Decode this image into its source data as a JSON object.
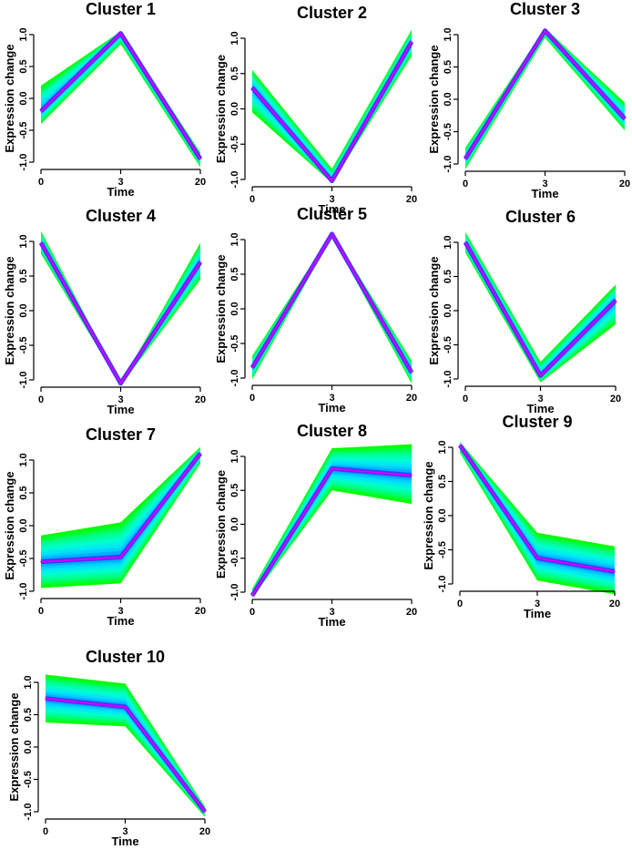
{
  "chart_data": [
    {
      "type": "line",
      "title": "Cluster 1",
      "xlabel": "Time",
      "ylabel": "Expression change",
      "x": [
        "0",
        "3",
        "20"
      ],
      "ylim": [
        -1,
        1
      ],
      "yticks": [
        "-1.0",
        "-0.5",
        "0.0",
        "0.5",
        "1.0"
      ],
      "series": [
        {
          "values": [
            -0.2,
            1.02,
            -0.95
          ]
        }
      ],
      "band": {
        "upper": [
          0.2,
          1.05,
          -0.85
        ],
        "lower": [
          -0.4,
          0.85,
          -1.08
        ]
      }
    },
    {
      "type": "line",
      "title": "Cluster 2",
      "xlabel": "Time",
      "ylabel": "Expression change",
      "x": [
        "0",
        "3",
        "20"
      ],
      "ylim": [
        -1,
        1
      ],
      "yticks": [
        "-1.0",
        "-0.5",
        "0.0",
        "0.5",
        "1.0"
      ],
      "series": [
        {
          "values": [
            0.3,
            -1.02,
            0.95
          ]
        }
      ],
      "band": {
        "upper": [
          0.55,
          -0.85,
          1.12
        ],
        "lower": [
          -0.05,
          -1.05,
          0.75
        ]
      }
    },
    {
      "type": "line",
      "title": "Cluster 3",
      "xlabel": "Time",
      "ylabel": "Expression change",
      "x": [
        "0",
        "3",
        "20"
      ],
      "ylim": [
        -1,
        1
      ],
      "yticks": [
        "-1.0",
        "-0.5",
        "0.0",
        "0.5",
        "1.0"
      ],
      "series": [
        {
          "values": [
            -0.92,
            1.06,
            -0.3
          ]
        }
      ],
      "band": {
        "upper": [
          -0.75,
          1.1,
          -0.05
        ],
        "lower": [
          -1.08,
          0.95,
          -0.48
        ]
      }
    },
    {
      "type": "line",
      "title": "Cluster 4",
      "xlabel": "Time",
      "ylabel": "Expression change",
      "x": [
        "0",
        "3",
        "20"
      ],
      "ylim": [
        -1,
        1
      ],
      "yticks": [
        "-1.0",
        "-0.5",
        "0.0",
        "0.5",
        "1.0"
      ],
      "series": [
        {
          "values": [
            0.98,
            -1.05,
            0.7
          ]
        }
      ],
      "band": {
        "upper": [
          1.15,
          -1.05,
          0.98
        ],
        "lower": [
          0.82,
          -1.08,
          0.45
        ]
      }
    },
    {
      "type": "line",
      "title": "Cluster 5",
      "xlabel": "Time",
      "ylabel": "Expression change",
      "x": [
        "0",
        "3",
        "20"
      ],
      "ylim": [
        -1,
        1
      ],
      "yticks": [
        "-1.0",
        "-0.5",
        "0.0",
        "0.5",
        "1.0"
      ],
      "series": [
        {
          "values": [
            -0.85,
            1.08,
            -0.92
          ]
        }
      ],
      "band": {
        "upper": [
          -0.68,
          1.1,
          -0.75
        ],
        "lower": [
          -1.02,
          1.05,
          -1.08
        ]
      }
    },
    {
      "type": "line",
      "title": "Cluster 6",
      "xlabel": "Time",
      "ylabel": "Expression change",
      "x": [
        "0",
        "3",
        "20"
      ],
      "ylim": [
        -1,
        1
      ],
      "yticks": [
        "-1.0",
        "-0.5",
        "0.0",
        "0.5",
        "1.0"
      ],
      "series": [
        {
          "values": [
            1.0,
            -0.95,
            0.15
          ]
        }
      ],
      "band": {
        "upper": [
          1.15,
          -0.75,
          0.38
        ],
        "lower": [
          0.85,
          -1.05,
          -0.2
        ]
      }
    },
    {
      "type": "line",
      "title": "Cluster 7",
      "xlabel": "Time",
      "ylabel": "Expression change",
      "x": [
        "0",
        "3",
        "20"
      ],
      "ylim": [
        -1,
        1
      ],
      "yticks": [
        "-1.0",
        "-0.5",
        "0.0",
        "0.5",
        "1.0"
      ],
      "series": [
        {
          "values": [
            -0.55,
            -0.48,
            1.1
          ]
        }
      ],
      "band": {
        "upper": [
          -0.15,
          0.05,
          1.2
        ],
        "lower": [
          -0.95,
          -0.88,
          0.95
        ]
      }
    },
    {
      "type": "line",
      "title": "Cluster 8",
      "xlabel": "Time",
      "ylabel": "Expression change",
      "x": [
        "0",
        "3",
        "20"
      ],
      "ylim": [
        -1,
        1
      ],
      "yticks": [
        "-1.0",
        "-0.5",
        "0.0",
        "0.5",
        "1.0"
      ],
      "series": [
        {
          "values": [
            -1.05,
            0.82,
            0.72
          ]
        }
      ],
      "band": {
        "upper": [
          -0.95,
          1.12,
          1.18
        ],
        "lower": [
          -1.08,
          0.5,
          0.3
        ]
      }
    },
    {
      "type": "line",
      "title": "Cluster 9",
      "xlabel": "Time",
      "ylabel": "Expression change",
      "x": [
        "0",
        "3",
        "20"
      ],
      "ylim": [
        -1,
        1
      ],
      "yticks": [
        "-1.0",
        "-0.5",
        "0.0",
        "0.5",
        "1.0"
      ],
      "series": [
        {
          "values": [
            1.03,
            -0.62,
            -0.82
          ]
        }
      ],
      "band": {
        "upper": [
          1.08,
          -0.25,
          -0.45
        ],
        "lower": [
          0.92,
          -0.95,
          -1.15
        ]
      }
    },
    {
      "type": "line",
      "title": "Cluster 10",
      "xlabel": "Time",
      "ylabel": "Expression change",
      "x": [
        "0",
        "3",
        "20"
      ],
      "ylim": [
        -1,
        1
      ],
      "yticks": [
        "-1.0",
        "-0.5",
        "0.0",
        "0.5",
        "1.0"
      ],
      "series": [
        {
          "values": [
            0.75,
            0.62,
            -1.0
          ]
        }
      ],
      "band": {
        "upper": [
          1.12,
          0.98,
          -0.92
        ],
        "lower": [
          0.38,
          0.32,
          -1.08
        ]
      }
    }
  ]
}
